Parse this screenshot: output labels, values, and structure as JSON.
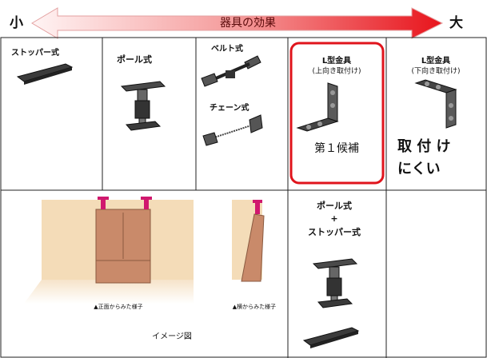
{
  "header": {
    "left": "小",
    "title": "器具の効果",
    "right": "大"
  },
  "cells": {
    "stopper": "ストッパー式",
    "pole": "ポール式",
    "belt": "ベルト式",
    "chain": "チェーン式",
    "l_up": {
      "title": "L型金具",
      "note": "(上向き取付け)",
      "badge": "第１候補"
    },
    "l_down": {
      "title": "L型金具",
      "note": "(下向き取付け)",
      "remark": [
        "取 付 け",
        "にくい"
      ]
    }
  },
  "image": {
    "front": "▲正面からみた様子",
    "side": "▲横からみた様子",
    "caption": "イメージ図"
  },
  "combo": [
    "ポール式",
    "+",
    "ストッパー式"
  ]
}
